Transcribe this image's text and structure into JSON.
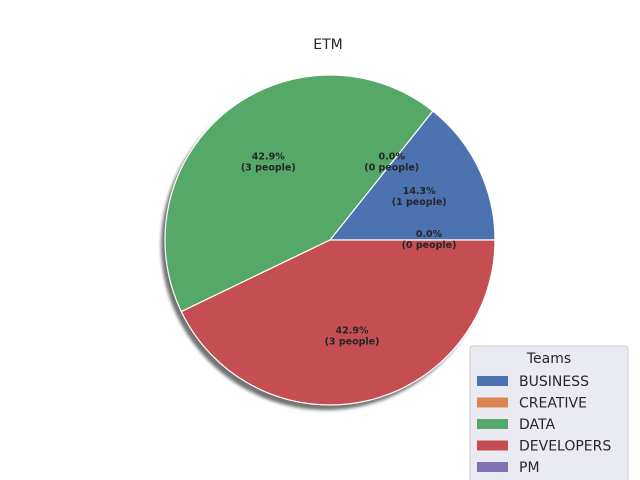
{
  "chart_data": {
    "type": "pie",
    "title": "ETM",
    "legend_title": "Teams",
    "legend_position": "bottom-right",
    "shadow": true,
    "slices": [
      {
        "name": "BUSINESS",
        "count": 1,
        "percent": 14.3,
        "label_line1": "14.3%",
        "label_line2": "(1 people)",
        "color": "#4c72b0"
      },
      {
        "name": "CREATIVE",
        "count": 0,
        "percent": 0.0,
        "label_line1": "0.0%",
        "label_line2": "(0 people)",
        "color": "#dd8452"
      },
      {
        "name": "DATA",
        "count": 3,
        "percent": 42.9,
        "label_line1": "42.9%",
        "label_line2": "(3 people)",
        "color": "#55a868"
      },
      {
        "name": "DEVELOPERS",
        "count": 3,
        "percent": 42.9,
        "label_line1": "42.9%",
        "label_line2": "(3 people)",
        "color": "#c44e52"
      },
      {
        "name": "PM",
        "count": 0,
        "percent": 0.0,
        "label_line1": "0.0%",
        "label_line2": "(0 people)",
        "color": "#8172b3"
      }
    ]
  }
}
